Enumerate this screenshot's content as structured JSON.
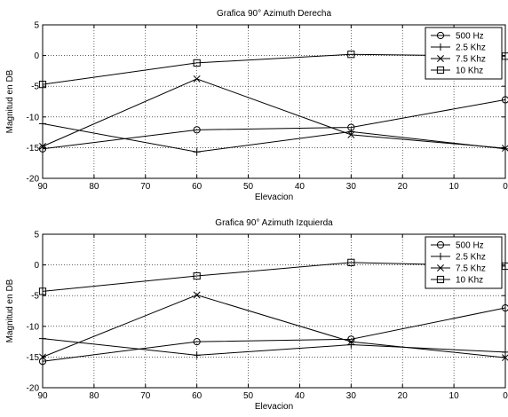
{
  "chart_data": [
    {
      "type": "line",
      "title": "Grafica 90° Azimuth Derecha",
      "xlabel": "Elevacion",
      "ylabel": "Magnitud en DB",
      "xlim": [
        90,
        0
      ],
      "ylim": [
        -20,
        5
      ],
      "x_ticks": [
        90,
        80,
        70,
        60,
        50,
        40,
        30,
        20,
        10,
        0
      ],
      "y_ticks": [
        5,
        0,
        -5,
        -10,
        -15,
        -20
      ],
      "grid": true,
      "legend_position": "top-right",
      "x": [
        90,
        60,
        30,
        0
      ],
      "series": [
        {
          "name": "500 Hz",
          "marker": "circle",
          "values": [
            -15.2,
            -12.1,
            -11.7,
            -7.2
          ]
        },
        {
          "name": "2.5 Khz",
          "marker": "plus",
          "values": [
            -11.1,
            -15.7,
            -12.4,
            -15.2
          ]
        },
        {
          "name": "7.5 Khz",
          "marker": "x",
          "values": [
            -14.8,
            -3.8,
            -12.9,
            -15.1
          ]
        },
        {
          "name": "10 Khz",
          "marker": "square",
          "values": [
            -4.7,
            -1.2,
            0.2,
            -0.1
          ]
        }
      ]
    },
    {
      "type": "line",
      "title": "Grafica 90° Azimuth Izquierda",
      "xlabel": "Elevacion",
      "ylabel": "Magnitud en DB",
      "xlim": [
        90,
        0
      ],
      "ylim": [
        -20,
        5
      ],
      "x_ticks": [
        90,
        80,
        70,
        60,
        50,
        40,
        30,
        20,
        10,
        0
      ],
      "y_ticks": [
        5,
        0,
        -5,
        -10,
        -15,
        -20
      ],
      "grid": true,
      "legend_position": "top-right",
      "x": [
        90,
        60,
        30,
        0
      ],
      "series": [
        {
          "name": "500 Hz",
          "marker": "circle",
          "values": [
            -15.7,
            -12.5,
            -12.1,
            -7.0
          ]
        },
        {
          "name": "2.5 Khz",
          "marker": "plus",
          "values": [
            -12.0,
            -14.7,
            -13.0,
            -14.2
          ]
        },
        {
          "name": "7.5 Khz",
          "marker": "x",
          "values": [
            -15.0,
            -4.9,
            -12.5,
            -15.1
          ]
        },
        {
          "name": "10 Khz",
          "marker": "square",
          "values": [
            -4.3,
            -1.8,
            0.4,
            -0.2
          ]
        }
      ]
    }
  ]
}
